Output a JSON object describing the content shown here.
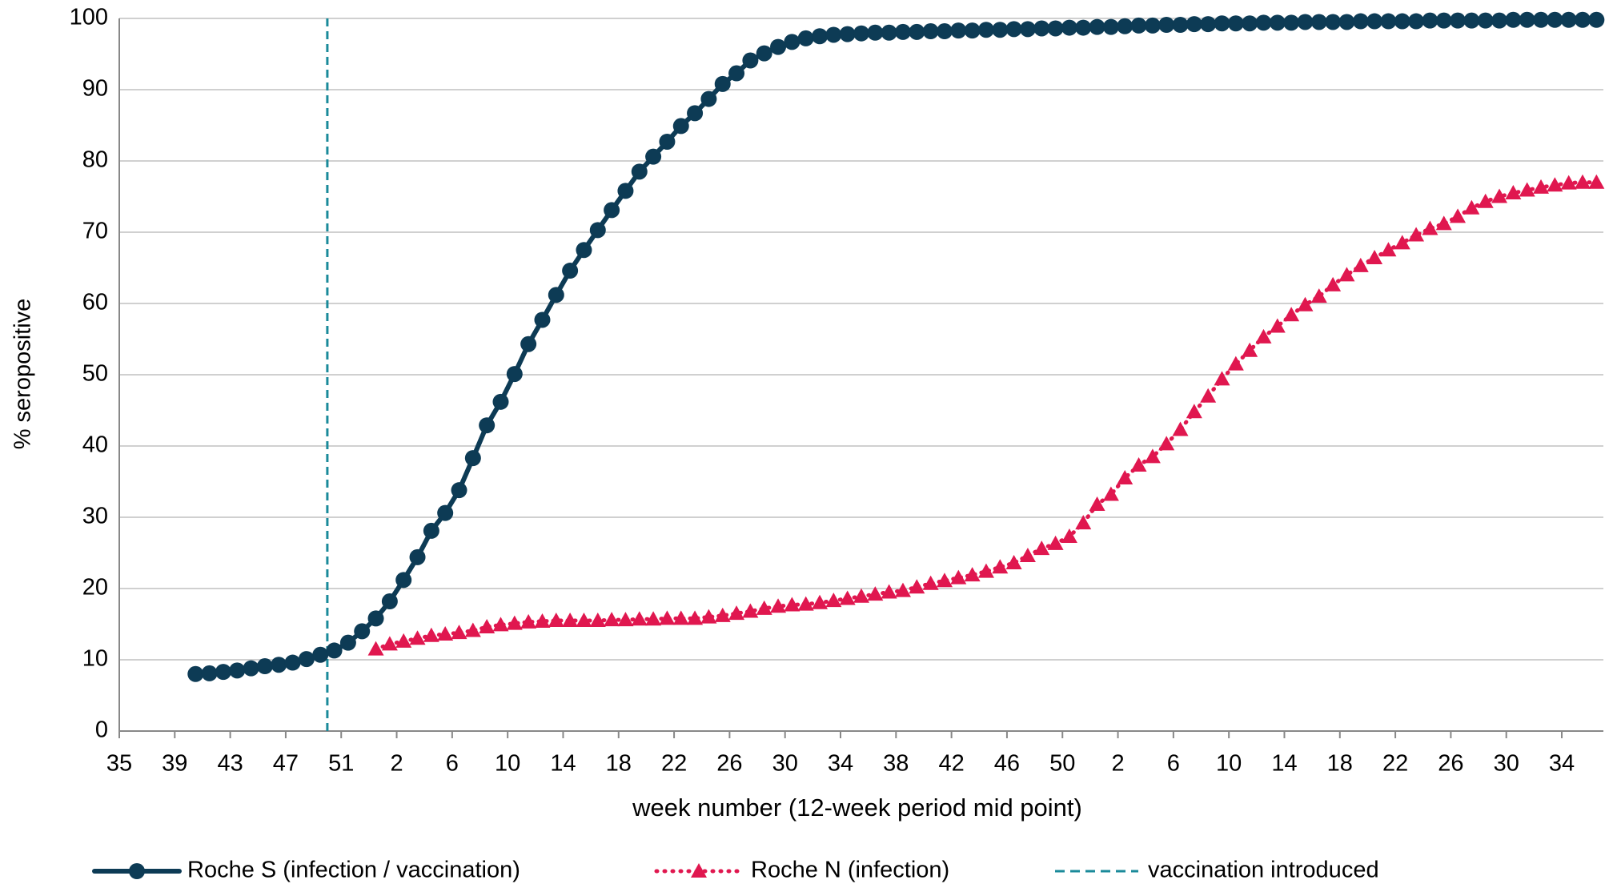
{
  "chart_data": {
    "type": "line",
    "xlabel": "week number (12-week period mid point)",
    "ylabel": "% seropositive",
    "categories": [
      "35",
      null,
      null,
      null,
      "39",
      null,
      null,
      null,
      "43",
      null,
      null,
      null,
      "47",
      null,
      null,
      null,
      "51",
      null,
      null,
      null,
      "2",
      null,
      null,
      null,
      "6",
      null,
      null,
      null,
      "10",
      null,
      null,
      null,
      "14",
      null,
      null,
      null,
      "18",
      null,
      null,
      null,
      "22",
      null,
      null,
      null,
      "26",
      null,
      null,
      null,
      "30",
      null,
      null,
      null,
      "34",
      null,
      null,
      null,
      "38",
      null,
      null,
      null,
      "42",
      null,
      null,
      null,
      "46",
      null,
      null,
      null,
      "50",
      null,
      null,
      null,
      "2",
      null,
      null,
      null,
      "6",
      null,
      null,
      null,
      "10",
      null,
      null,
      null,
      "14",
      null,
      null,
      null,
      "18",
      null,
      null,
      null,
      "22",
      null,
      null,
      null,
      "26",
      null,
      null,
      null,
      "30",
      null,
      null,
      null,
      "34",
      null,
      null
    ],
    "series": [
      {
        "name": "Roche S (infection / vaccination)",
        "color": "#0d3b55",
        "marker": "circle",
        "dash": "solid",
        "values": [
          null,
          null,
          null,
          null,
          null,
          8.0,
          8.1,
          8.3,
          8.5,
          8.8,
          9.1,
          9.3,
          9.6,
          10.1,
          10.7,
          11.3,
          12.4,
          14.0,
          15.8,
          18.2,
          21.2,
          24.4,
          28.1,
          30.6,
          33.8,
          38.3,
          42.9,
          46.2,
          50.1,
          54.3,
          57.7,
          61.2,
          64.6,
          67.5,
          70.3,
          73.1,
          75.8,
          78.5,
          80.6,
          82.7,
          84.9,
          86.7,
          88.7,
          90.8,
          92.3,
          94.1,
          95.1,
          96.0,
          96.7,
          97.2,
          97.5,
          97.7,
          97.8,
          97.9,
          98.0,
          98.0,
          98.1,
          98.1,
          98.2,
          98.2,
          98.3,
          98.3,
          98.4,
          98.4,
          98.5,
          98.5,
          98.6,
          98.6,
          98.7,
          98.7,
          98.8,
          98.8,
          98.9,
          99.0,
          99.0,
          99.1,
          99.1,
          99.2,
          99.2,
          99.3,
          99.3,
          99.3,
          99.4,
          99.4,
          99.4,
          99.5,
          99.5,
          99.5,
          99.5,
          99.6,
          99.6,
          99.6,
          99.6,
          99.6,
          99.7,
          99.7,
          99.7,
          99.7,
          99.7,
          99.7,
          99.8,
          99.8,
          99.8,
          99.8,
          99.8,
          99.8,
          99.8
        ]
      },
      {
        "name": "Roche N (infection)",
        "color": "#e0174f",
        "marker": "triangle",
        "dash": "dotted",
        "values": [
          null,
          null,
          null,
          null,
          null,
          null,
          null,
          null,
          null,
          null,
          null,
          null,
          null,
          null,
          null,
          null,
          null,
          null,
          11.5,
          12.2,
          12.6,
          13.0,
          13.4,
          13.6,
          13.8,
          14.1,
          14.6,
          14.9,
          15.1,
          15.3,
          15.4,
          15.5,
          15.5,
          15.5,
          15.5,
          15.6,
          15.6,
          15.7,
          15.7,
          15.8,
          15.8,
          15.8,
          16.0,
          16.2,
          16.5,
          16.8,
          17.2,
          17.5,
          17.7,
          17.8,
          18.0,
          18.3,
          18.6,
          18.9,
          19.2,
          19.5,
          19.7,
          20.2,
          20.7,
          21.1,
          21.5,
          21.9,
          22.4,
          23.0,
          23.6,
          24.6,
          25.6,
          26.3,
          27.3,
          29.2,
          31.8,
          33.2,
          35.5,
          37.3,
          38.5,
          40.3,
          42.3,
          44.8,
          47.0,
          49.4,
          51.5,
          53.4,
          55.3,
          56.8,
          58.4,
          59.8,
          61.0,
          62.6,
          64.0,
          65.3,
          66.4,
          67.5,
          68.5,
          69.6,
          70.5,
          71.2,
          72.2,
          73.4,
          74.3,
          75.0,
          75.5,
          75.9,
          76.3,
          76.6,
          76.9,
          77.0,
          77.0
        ]
      }
    ],
    "vline": {
      "name": "vaccination introduced",
      "color": "#1a8a9a",
      "index": 15
    },
    "ylim": [
      0,
      100
    ],
    "yticks": [
      0,
      10,
      20,
      30,
      40,
      50,
      60,
      70,
      80,
      90,
      100
    ],
    "grid": true,
    "legend": "bottom"
  }
}
